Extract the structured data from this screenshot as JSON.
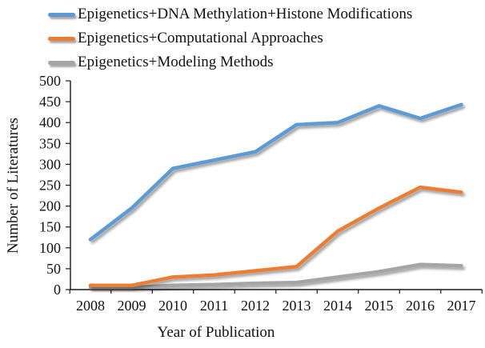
{
  "figure": {
    "background": "#ffffff",
    "axis_color": "#1a1a1a",
    "text_color": "#111111"
  },
  "chart_data": {
    "type": "line",
    "x": [
      2008,
      2009,
      2010,
      2011,
      2012,
      2013,
      2014,
      2015,
      2016,
      2017
    ],
    "series": [
      {
        "name": "Epigenetics+DNA Methylation+Histone Modifications",
        "color": "#5B9BD5",
        "values": [
          120,
          195,
          290,
          310,
          330,
          395,
          400,
          440,
          410,
          443
        ]
      },
      {
        "name": "Epigenetics+Computational Approaches",
        "color": "#ED7D31",
        "values": [
          10,
          10,
          30,
          35,
          45,
          55,
          140,
          195,
          245,
          233
        ]
      },
      {
        "name": "Epigenetics+Modeling Methods",
        "color": "#A5A5A5",
        "values": [
          5,
          5,
          10,
          12,
          15,
          17,
          30,
          43,
          60,
          57
        ]
      }
    ],
    "xlabel": "Year of Publication",
    "ylabel": "Number of Literatures",
    "ylim": [
      0,
      500
    ],
    "ytick_step": 50,
    "grid": false,
    "legend_position": "top-left",
    "line_width": 4.5,
    "line_shadow": true
  }
}
